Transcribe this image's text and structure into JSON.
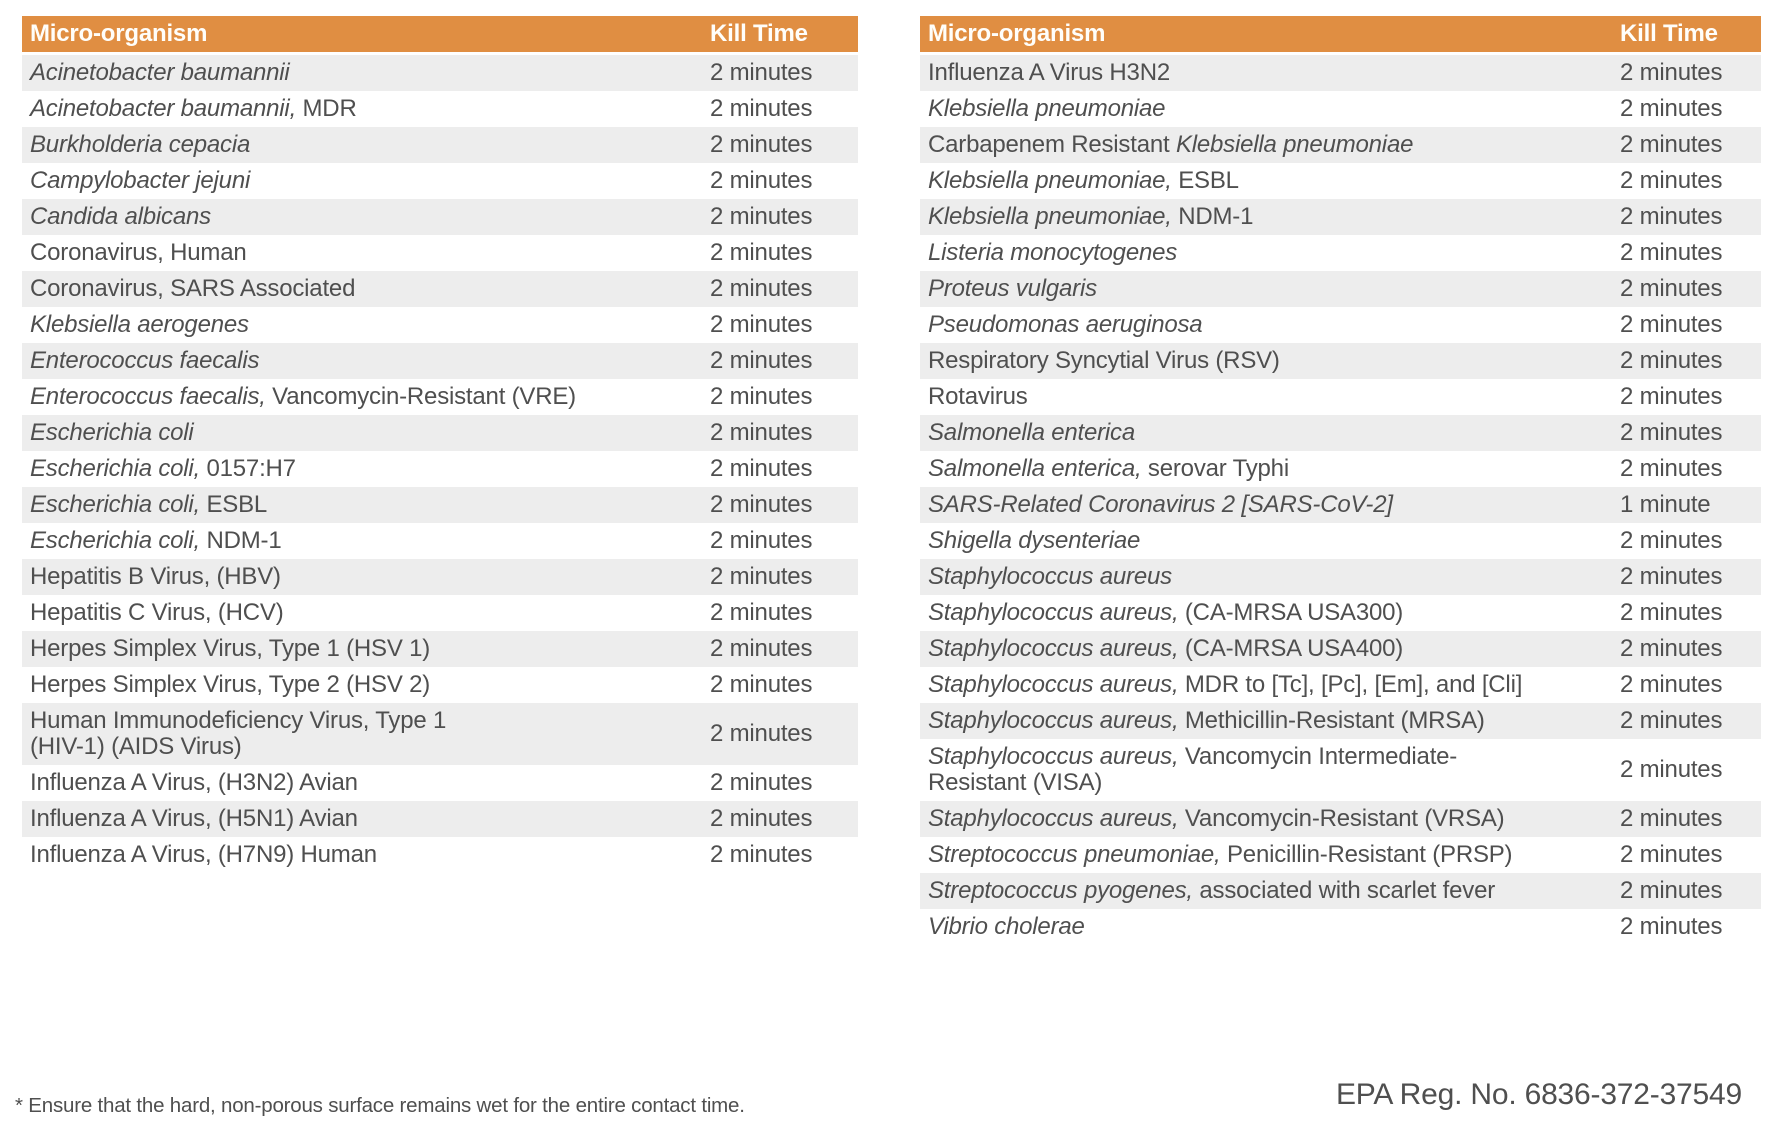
{
  "colors": {
    "header_bg": "#E08E42",
    "header_text": "#FFFEFA",
    "stripe": "#EDEDED",
    "text": "#4F4F4F"
  },
  "tables": [
    {
      "headers": {
        "organism": "Micro-organism",
        "kill_time": "Kill Time"
      },
      "rows": [
        {
          "segments": [
            {
              "text": "Acinetobacter baumannii",
              "italic": true
            }
          ],
          "kill_time": "2 minutes"
        },
        {
          "segments": [
            {
              "text": "Acinetobacter baumannii,",
              "italic": true
            },
            {
              "text": " MDR"
            }
          ],
          "kill_time": "2 minutes"
        },
        {
          "segments": [
            {
              "text": "Burkholderia cepacia",
              "italic": true
            }
          ],
          "kill_time": "2 minutes"
        },
        {
          "segments": [
            {
              "text": "Campylobacter jejuni",
              "italic": true
            }
          ],
          "kill_time": "2 minutes"
        },
        {
          "segments": [
            {
              "text": "Candida albicans",
              "italic": true
            }
          ],
          "kill_time": "2 minutes"
        },
        {
          "segments": [
            {
              "text": "Coronavirus, Human"
            }
          ],
          "kill_time": "2 minutes"
        },
        {
          "segments": [
            {
              "text": "Coronavirus, SARS Associated"
            }
          ],
          "kill_time": "2 minutes"
        },
        {
          "segments": [
            {
              "text": "Klebsiella aerogenes",
              "italic": true
            }
          ],
          "kill_time": "2 minutes"
        },
        {
          "segments": [
            {
              "text": "Enterococcus faecalis",
              "italic": true
            }
          ],
          "kill_time": "2 minutes"
        },
        {
          "segments": [
            {
              "text": "Enterococcus faecalis,",
              "italic": true
            },
            {
              "text": " Vancomycin-Resistant (VRE)"
            }
          ],
          "kill_time": "2 minutes"
        },
        {
          "segments": [
            {
              "text": "Escherichia coli",
              "italic": true
            }
          ],
          "kill_time": "2 minutes"
        },
        {
          "segments": [
            {
              "text": "Escherichia coli,",
              "italic": true
            },
            {
              "text": " 0157:H7"
            }
          ],
          "kill_time": "2 minutes"
        },
        {
          "segments": [
            {
              "text": "Escherichia coli,",
              "italic": true
            },
            {
              "text": " ESBL"
            }
          ],
          "kill_time": "2 minutes"
        },
        {
          "segments": [
            {
              "text": "Escherichia coli,",
              "italic": true
            },
            {
              "text": " NDM-1"
            }
          ],
          "kill_time": "2 minutes"
        },
        {
          "segments": [
            {
              "text": "Hepatitis B Virus, (HBV)"
            }
          ],
          "kill_time": "2 minutes"
        },
        {
          "segments": [
            {
              "text": "Hepatitis C Virus, (HCV)"
            }
          ],
          "kill_time": "2 minutes"
        },
        {
          "segments": [
            {
              "text": "Herpes Simplex Virus, Type 1 (HSV 1)"
            }
          ],
          "kill_time": "2 minutes"
        },
        {
          "segments": [
            {
              "text": "Herpes Simplex Virus, Type 2 (HSV 2)"
            }
          ],
          "kill_time": "2 minutes"
        },
        {
          "segments": [
            {
              "text": "Human Immunodeficiency Virus, Type 1"
            },
            {
              "br": true
            },
            {
              "text": "(HIV-1) (AIDS Virus)"
            }
          ],
          "kill_time": "2 minutes"
        },
        {
          "segments": [
            {
              "text": "Influenza A Virus, (H3N2) Avian"
            }
          ],
          "kill_time": "2 minutes"
        },
        {
          "segments": [
            {
              "text": "Influenza A Virus, (H5N1) Avian"
            }
          ],
          "kill_time": "2 minutes"
        },
        {
          "segments": [
            {
              "text": "Influenza A Virus, (H7N9) Human"
            }
          ],
          "kill_time": "2 minutes"
        }
      ]
    },
    {
      "headers": {
        "organism": "Micro-organism",
        "kill_time": "Kill Time"
      },
      "rows": [
        {
          "segments": [
            {
              "text": "Influenza A Virus H3N2"
            }
          ],
          "kill_time": "2 minutes"
        },
        {
          "segments": [
            {
              "text": "Klebsiella pneumoniae",
              "italic": true
            }
          ],
          "kill_time": "2 minutes"
        },
        {
          "segments": [
            {
              "text": "Carbapenem Resistant "
            },
            {
              "text": "Klebsiella pneumoniae",
              "italic": true
            }
          ],
          "kill_time": "2 minutes"
        },
        {
          "segments": [
            {
              "text": "Klebsiella pneumoniae,",
              "italic": true
            },
            {
              "text": " ESBL"
            }
          ],
          "kill_time": "2 minutes"
        },
        {
          "segments": [
            {
              "text": "Klebsiella pneumoniae,",
              "italic": true
            },
            {
              "text": " NDM-1"
            }
          ],
          "kill_time": "2 minutes"
        },
        {
          "segments": [
            {
              "text": "Listeria monocytogenes",
              "italic": true
            }
          ],
          "kill_time": "2 minutes"
        },
        {
          "segments": [
            {
              "text": "Proteus vulgaris",
              "italic": true
            }
          ],
          "kill_time": "2 minutes"
        },
        {
          "segments": [
            {
              "text": "Pseudomonas aeruginosa",
              "italic": true
            }
          ],
          "kill_time": "2 minutes"
        },
        {
          "segments": [
            {
              "text": "Respiratory Syncytial Virus (RSV)"
            }
          ],
          "kill_time": "2 minutes"
        },
        {
          "segments": [
            {
              "text": "Rotavirus"
            }
          ],
          "kill_time": "2 minutes"
        },
        {
          "segments": [
            {
              "text": "Salmonella enterica",
              "italic": true
            }
          ],
          "kill_time": "2 minutes"
        },
        {
          "segments": [
            {
              "text": "Salmonella enterica,",
              "italic": true
            },
            {
              "text": " serovar Typhi"
            }
          ],
          "kill_time": "2 minutes"
        },
        {
          "segments": [
            {
              "text": "SARS-Related Coronavirus 2 [SARS-CoV-2]",
              "italic": true
            }
          ],
          "kill_time": "1 minute"
        },
        {
          "segments": [
            {
              "text": "Shigella dysenteriae",
              "italic": true
            }
          ],
          "kill_time": "2 minutes"
        },
        {
          "segments": [
            {
              "text": "Staphylococcus aureus",
              "italic": true
            }
          ],
          "kill_time": "2 minutes"
        },
        {
          "segments": [
            {
              "text": "Staphylococcus aureus,",
              "italic": true
            },
            {
              "text": " (CA-MRSA USA300)"
            }
          ],
          "kill_time": "2 minutes"
        },
        {
          "segments": [
            {
              "text": "Staphylococcus aureus,",
              "italic": true
            },
            {
              "text": " (CA-MRSA USA400)"
            }
          ],
          "kill_time": "2 minutes"
        },
        {
          "segments": [
            {
              "text": "Staphylococcus aureus,",
              "italic": true
            },
            {
              "text": " MDR to [Tc], [Pc], [Em], and [Cli]"
            }
          ],
          "kill_time": "2 minutes"
        },
        {
          "segments": [
            {
              "text": "Staphylococcus aureus,",
              "italic": true
            },
            {
              "text": " Methicillin-Resistant (MRSA)"
            }
          ],
          "kill_time": "2 minutes"
        },
        {
          "segments": [
            {
              "text": "Staphylococcus aureus,",
              "italic": true
            },
            {
              "text": " Vancomycin Intermediate-"
            },
            {
              "br": true
            },
            {
              "text": "Resistant (VISA)"
            }
          ],
          "kill_time": "2 minutes"
        },
        {
          "segments": [
            {
              "text": "Staphylococcus aureus,",
              "italic": true
            },
            {
              "text": " Vancomycin-Resistant (VRSA)"
            }
          ],
          "kill_time": "2 minutes"
        },
        {
          "segments": [
            {
              "text": "Streptococcus pneumoniae,",
              "italic": true
            },
            {
              "text": " Penicillin-Resistant (PRSP)"
            }
          ],
          "kill_time": "2 minutes"
        },
        {
          "segments": [
            {
              "text": "Streptococcus pyogenes,",
              "italic": true
            },
            {
              "text": " associated with scarlet fever"
            }
          ],
          "kill_time": "2 minutes"
        },
        {
          "segments": [
            {
              "text": "Vibrio cholerae",
              "italic": true
            }
          ],
          "kill_time": "2 minutes"
        }
      ]
    }
  ],
  "footnote": "* Ensure that the hard, non-porous surface remains wet for the entire contact time.",
  "epa_reg": "EPA Reg. No. 6836-372-37549"
}
